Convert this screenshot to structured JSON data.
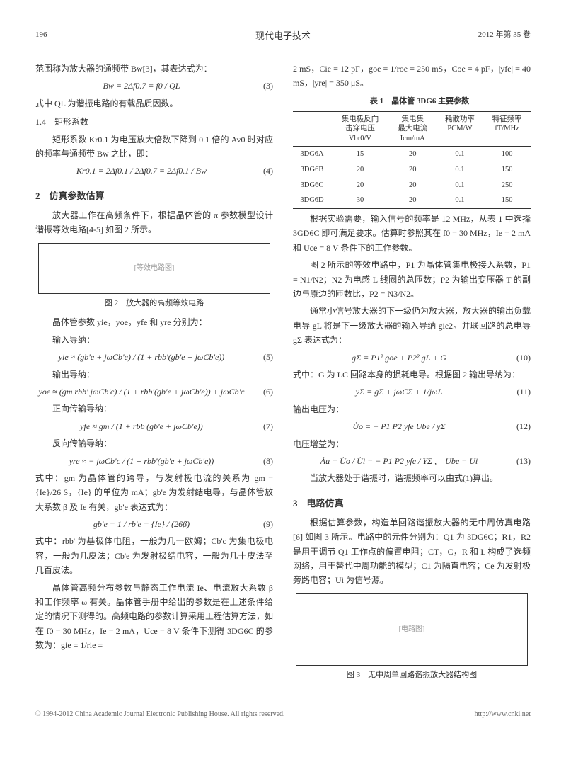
{
  "header": {
    "page_num": "196",
    "journal": "现代电子技术",
    "issue": "2012 年第 35 卷"
  },
  "left": {
    "p1": "范围称为放大器的通频带 Bw[3]，其表达式为：",
    "eq3": {
      "formula": "Bw = 2Δf0.7 = f0 / QL",
      "num": "(3)"
    },
    "p2": "式中 QL 为谐振电路的有载品质因数。",
    "h14": "1.4　矩形系数",
    "p3": "矩形系数 Kr0.1 为电压放大倍数下降到 0.1 倍的 Av0 时对应的频率与通频带 Bw 之比，即：",
    "eq4": {
      "formula": "Kr0.1 = 2Δf0.1 / 2Δf0.7 = 2Δf0.1 / Bw",
      "num": "(4)"
    },
    "h2": "2　仿真参数估算",
    "p4": "放大器工作在高频条件下，根据晶体管的 π 参数模型设计谐振等效电路[4-5] 如图 2 所示。",
    "fig2_label": "[等效电路图]",
    "fig2_caption": "图 2　放大器的高频等效电路",
    "p5": "晶体管参数 yie，yoe，yfe 和 yre 分别为：",
    "p5a": "输入导纳：",
    "eq5": {
      "formula": "yie ≈ (gb'e + jωCb'e) / (1 + rbb'(gb'e + jωCb'e))",
      "num": "(5)"
    },
    "p6": "输出导纳：",
    "eq6": {
      "formula": "yoe ≈ (gm rbb' jωCb'c) / (1 + rbb'(gb'e + jωCb'e)) + jωCb'c",
      "num": "(6)"
    },
    "p7": "正向传输导纳：",
    "eq7": {
      "formula": "yfe ≈ gm / (1 + rbb'(gb'e + jωCb'e))",
      "num": "(7)"
    },
    "p8": "反向传输导纳：",
    "eq8": {
      "formula": "yre ≈ − jωCb'c / (1 + rbb'(gb'e + jωCb'e))",
      "num": "(8)"
    },
    "p9": "式中：gm 为晶体管的跨导，与发射极电流的关系为 gm = {Ie}/26 S，{Ie} 的单位为 mA；gb'e 为发射结电导，与晶体管放大系数 β 及 Ie 有关，gb'e 表达式为：",
    "eq9": {
      "formula": "gb'e = 1 / rb'e = {Ie} / (26β)",
      "num": "(9)"
    },
    "p10": "式中：rbb' 为基极体电阻，一般为几十欧姆；Cb'c 为集电极电容，一般为几皮法；Cb'e 为发射极结电容，一般为几十皮法至几百皮法。",
    "p11": "晶体管高频分布参数与静态工作电流 Ie、电流放大系数 β 和工作频率 ω 有关。晶体管手册中给出的参数是在上述条件给定的情况下测得的。高频电路的参数计算采用工程估算方法，如在 f0 = 30 MHz，Ie = 2 mA，Uce = 8 V 条件下测得 3DG6C 的参数为：gie = 1/rie = "
  },
  "right": {
    "p1": "2 mS，Cie = 12 pF，goe = 1/roe = 250 mS，Coe = 4 pF，|yfe| = 40 mS，|yre| = 350 μS。",
    "tbl1_caption": "表 1　晶体管 3DG6 主要参数",
    "table": {
      "headers": [
        {
          "line1": "集电极反向",
          "line2": "击穿电压",
          "line3": "Vbr0/V"
        },
        {
          "line1": "集电集",
          "line2": "最大电流",
          "line3": "Icm/mA"
        },
        {
          "line1": "耗散功率",
          "line2": "PCM/W",
          "line3": ""
        },
        {
          "line1": "特征频率",
          "line2": "fT/MHz",
          "line3": ""
        }
      ],
      "rows": [
        {
          "name": "3DG6A",
          "c1": "15",
          "c2": "20",
          "c3": "0.1",
          "c4": "100"
        },
        {
          "name": "3DG6B",
          "c1": "20",
          "c2": "20",
          "c3": "0.1",
          "c4": "150"
        },
        {
          "name": "3DG6C",
          "c1": "20",
          "c2": "20",
          "c3": "0.1",
          "c4": "250"
        },
        {
          "name": "3DG6D",
          "c1": "30",
          "c2": "20",
          "c3": "0.1",
          "c4": "150"
        }
      ]
    },
    "p2": "根据实验需要，输入信号的频率是 12 MHz，从表 1 中选择 3GD6C 即可满足要求。估算时参照其在 f0 = 30 MHz，Ie = 2 mA 和 Uce = 8 V 条件下的工作参数。",
    "p3": "图 2 所示的等效电路中，P1 为晶体管集电极接入系数，P1 = N1/N2；N2 为电感 L 线圈的总匝数；P2 为输出变压器 T 的副边与原边的匝数比，P2 = N3/N2。",
    "p4": "通常小信号放大器的下一级仍为放大器，放大器的输出负载电导 gL 将是下一级放大器的输入导纳 gie2。并联回路的总电导 gΣ 表达式为：",
    "eq10": {
      "formula": "gΣ = P1² goe + P2² gL + G",
      "num": "(10)"
    },
    "p5": "式中：G 为 LC 回路本身的损耗电导。根据图 2 输出导纳为：",
    "eq11": {
      "formula": "yΣ = gΣ + jωCΣ + 1/jωL",
      "num": "(11)"
    },
    "p6": "输出电压为：",
    "eq12": {
      "formula": "U̇o = − P1 P2 yfe Ube / yΣ",
      "num": "(12)"
    },
    "p7": "电压增益为：",
    "eq13": {
      "formula": "Ȧu = U̇o / U̇i = − P1 P2 yfe / YΣ ,　Ube = Ui",
      "num": "(13)"
    },
    "p8": "当放大器处于谐振时，谐振频率可以由式(1)算出。",
    "h3": "3　电路仿真",
    "p9": "根据估算参数，构造单回路谐振放大器的无中周仿真电路[6] 如图 3 所示。电路中的元件分别为：Q1 为 3DG6C；R1，R2 是用于调节 Q1 工作点的偏置电阻；CT，C，R 和 L 构成了选频网络，用于替代中周功能的模型；C1 为隔直电容；Ce 为发射极旁路电容；Ui 为信号源。",
    "fig3_label": "[电路图]",
    "fig3_caption": "图 3　无中周单回路谐振放大器结构图"
  },
  "footer": {
    "left": "© 1994-2012 China Academic Journal Electronic Publishing House. All rights reserved.",
    "right": "http://www.cnki.net"
  }
}
